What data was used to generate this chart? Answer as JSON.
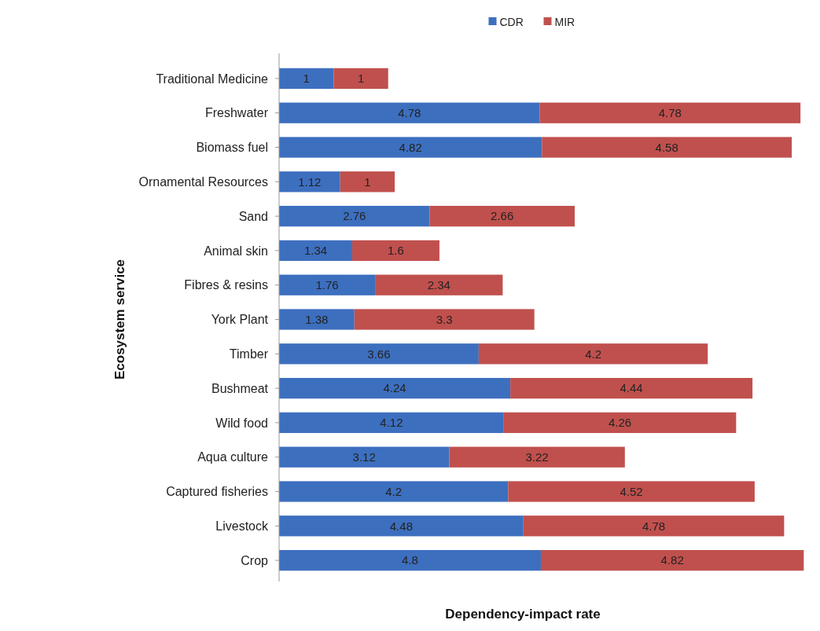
{
  "chart_data": {
    "type": "bar",
    "orientation": "horizontal",
    "stacked": true,
    "xlabel": "Dependency-impact rate",
    "ylabel": "Ecosystem service",
    "categories": [
      "Traditional Medicine",
      "Freshwater",
      "Biomass fuel",
      "Ornamental Resources",
      "Sand",
      "Animal skin",
      "Fibres & resins",
      "York Plant",
      "Timber",
      "Bushmeat",
      "Wild food",
      "Aqua culture",
      "Captured fisheries",
      "Livestock",
      "Crop"
    ],
    "series": [
      {
        "name": "CDR",
        "color": "#3d6fbf",
        "values": [
          1,
          4.78,
          4.82,
          1.12,
          2.76,
          1.34,
          1.76,
          1.38,
          3.66,
          4.24,
          4.12,
          3.12,
          4.2,
          4.48,
          4.8
        ]
      },
      {
        "name": "MIR",
        "color": "#c0504d",
        "values": [
          1,
          4.78,
          4.58,
          1,
          2.66,
          1.6,
          2.34,
          3.3,
          4.2,
          4.44,
          4.26,
          3.22,
          4.52,
          4.78,
          4.82
        ]
      }
    ],
    "data_labels": true,
    "legend": "top"
  }
}
